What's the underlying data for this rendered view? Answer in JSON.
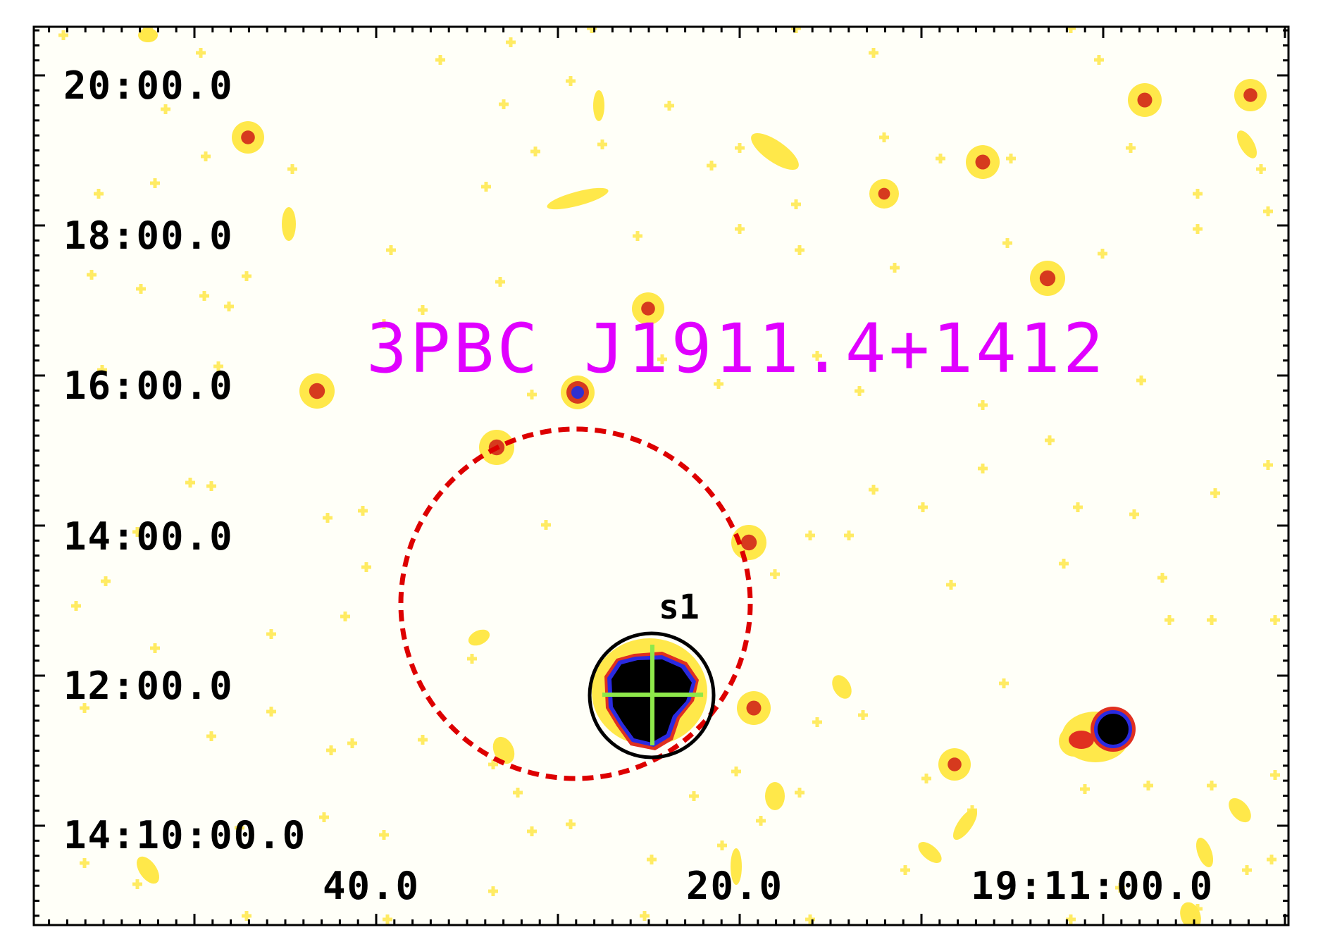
{
  "title": "3PBC J1911.4+1412",
  "colors": {
    "title": "#e000ff",
    "error_circle": "#dd0000",
    "source_circle": "#000000",
    "crosshair": "#8ee84a",
    "frame": "#000000",
    "halo": "#ffe84a"
  },
  "dec_axis": {
    "labels": [
      "20:00.0",
      "18:00.0",
      "16:00.0",
      "14:00.0",
      "12:00.0",
      "14:10:00.0"
    ]
  },
  "ra_axis": {
    "labels": [
      "40.0",
      "20.0",
      "19:11:00.0"
    ]
  },
  "source": {
    "label": "s1"
  }
}
